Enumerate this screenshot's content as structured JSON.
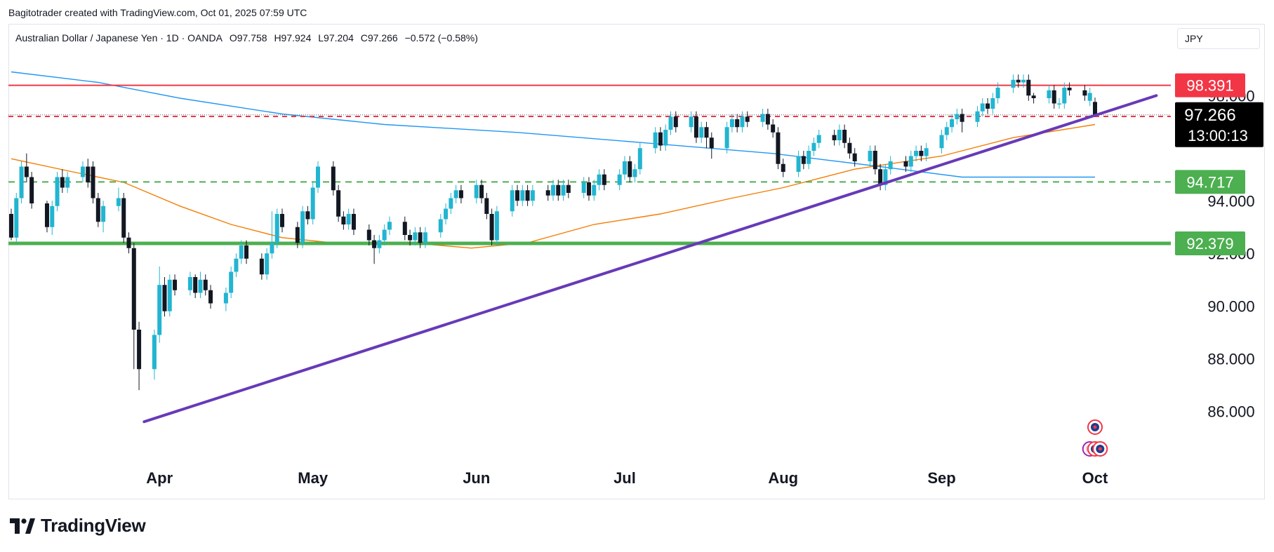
{
  "credit": "Bagitotrader created with TradingView.com, Oct 01, 2025 07:59 UTC",
  "legend": {
    "symbol": "Australian Dollar / Japanese Yen · 1D · OANDA",
    "open": "O97.758",
    "high": "H97.924",
    "low": "L97.204",
    "close": "C97.266",
    "change": "−0.572 (−0.58%)"
  },
  "currency": "JPY",
  "brand": "TradingView",
  "countdown": "13:00:13",
  "colors": {
    "up": "#22b5d1",
    "down": "#131722",
    "red_line": "#f23645",
    "green_line": "#4caf50",
    "trend_line": "#673ab7",
    "ma_fast": "#f57c00",
    "ma_slow": "#2196f3"
  },
  "chart_data": {
    "type": "candlestick",
    "ylim": [
      84.3,
      99.5
    ],
    "yticks": [
      {
        "value": 98.0,
        "label": "98.000"
      },
      {
        "value": 94.0,
        "label": "94.000"
      },
      {
        "value": 92.0,
        "label": "92.000"
      },
      {
        "value": 90.0,
        "label": "90.000"
      },
      {
        "value": 88.0,
        "label": "88.000"
      },
      {
        "value": 86.0,
        "label": "86.000"
      }
    ],
    "xlabels": [
      "Apr",
      "May",
      "Jun",
      "Jul",
      "Aug",
      "Sep",
      "Oct"
    ],
    "price_levels": [
      {
        "value": 98.391,
        "label": "98.391",
        "style": "solid-red"
      },
      {
        "value": 97.207,
        "label": "97.207",
        "style": "dashed-red"
      },
      {
        "value": 94.717,
        "label": "94.717",
        "style": "dashed-green"
      },
      {
        "value": 92.379,
        "label": "92.379",
        "style": "solid-green"
      }
    ],
    "last_price": {
      "value": 97.266,
      "label": "97.266"
    },
    "trendline": {
      "from": {
        "date": "2025-03-29",
        "price": 85.6
      },
      "to": {
        "date": "2025-10-13",
        "price": 98.0
      }
    },
    "candles": [
      [
        "2025-03-03",
        93.5,
        92.6,
        93.7,
        92.5
      ],
      [
        "2025-03-04",
        92.6,
        94.1,
        94.3,
        92.4
      ],
      [
        "2025-03-05",
        94.1,
        95.3,
        95.5,
        93.9
      ],
      [
        "2025-03-06",
        95.3,
        94.9,
        95.8,
        94.7
      ],
      [
        "2025-03-07",
        94.9,
        93.9,
        95.1,
        93.7
      ],
      [
        "2025-03-10",
        93.9,
        93.0,
        94.0,
        92.8
      ],
      [
        "2025-03-11",
        93.0,
        93.8,
        94.0,
        92.7
      ],
      [
        "2025-03-12",
        93.8,
        94.9,
        95.1,
        93.6
      ],
      [
        "2025-03-13",
        94.9,
        94.5,
        95.2,
        94.3
      ],
      [
        "2025-03-14",
        94.5,
        94.9,
        95.1,
        94.3
      ],
      [
        "2025-03-17",
        94.9,
        95.3,
        95.5,
        94.7
      ],
      [
        "2025-03-18",
        95.3,
        94.7,
        95.6,
        94.5
      ],
      [
        "2025-03-19",
        95.3,
        94.1,
        95.5,
        93.9
      ],
      [
        "2025-03-20",
        94.1,
        93.2,
        94.3,
        93.0
      ],
      [
        "2025-03-21",
        93.2,
        93.8,
        94.0,
        92.8
      ],
      [
        "2025-03-24",
        93.8,
        94.1,
        94.5,
        93.6
      ],
      [
        "2025-03-25",
        94.1,
        92.6,
        94.3,
        92.4
      ],
      [
        "2025-03-26",
        92.6,
        92.2,
        92.8,
        92.0
      ],
      [
        "2025-03-27",
        92.2,
        89.1,
        92.4,
        87.6
      ],
      [
        "2025-03-28",
        89.1,
        87.6,
        89.4,
        86.8
      ],
      [
        "2025-03-31",
        87.6,
        88.9,
        89.1,
        87.2
      ],
      [
        "2025-04-01",
        88.9,
        90.8,
        91.5,
        88.6
      ],
      [
        "2025-04-02",
        90.8,
        89.8,
        91.1,
        89.6
      ],
      [
        "2025-04-03",
        89.8,
        91.0,
        91.2,
        89.6
      ],
      [
        "2025-04-04",
        91.0,
        90.6,
        91.2,
        90.4
      ],
      [
        "2025-04-07",
        90.6,
        91.1,
        91.3,
        90.4
      ],
      [
        "2025-04-08",
        91.1,
        90.5,
        91.2,
        90.3
      ],
      [
        "2025-04-09",
        90.5,
        91.0,
        91.3,
        90.3
      ],
      [
        "2025-04-10",
        91.0,
        90.6,
        91.2,
        90.4
      ],
      [
        "2025-04-11",
        90.6,
        90.1,
        90.8,
        89.9
      ],
      [
        "2025-04-14",
        90.1,
        90.5,
        90.7,
        89.8
      ],
      [
        "2025-04-15",
        90.5,
        91.3,
        91.5,
        90.3
      ],
      [
        "2025-04-16",
        91.3,
        91.8,
        92.0,
        91.1
      ],
      [
        "2025-04-17",
        91.8,
        92.3,
        92.5,
        91.6
      ],
      [
        "2025-04-18",
        92.3,
        91.8,
        92.5,
        91.6
      ],
      [
        "2025-04-21",
        91.8,
        91.2,
        92.0,
        91.0
      ],
      [
        "2025-04-22",
        91.2,
        92.0,
        92.2,
        91.0
      ],
      [
        "2025-04-23",
        92.0,
        92.4,
        93.6,
        91.8
      ],
      [
        "2025-04-24",
        92.4,
        93.5,
        93.7,
        92.2
      ],
      [
        "2025-04-25",
        93.5,
        93.0,
        93.7,
        92.8
      ],
      [
        "2025-04-28",
        93.0,
        92.4,
        93.2,
        92.2
      ],
      [
        "2025-04-29",
        92.4,
        93.6,
        93.8,
        92.2
      ],
      [
        "2025-04-30",
        93.6,
        93.3,
        93.8,
        93.1
      ],
      [
        "2025-05-01",
        93.3,
        94.5,
        94.7,
        93.1
      ],
      [
        "2025-05-02",
        94.5,
        95.3,
        95.5,
        94.3
      ],
      [
        "2025-05-05",
        95.3,
        94.4,
        95.5,
        94.2
      ],
      [
        "2025-05-06",
        94.4,
        93.4,
        94.6,
        93.2
      ],
      [
        "2025-05-07",
        93.4,
        93.1,
        93.6,
        92.9
      ],
      [
        "2025-05-08",
        93.1,
        93.5,
        93.7,
        92.9
      ],
      [
        "2025-05-09",
        93.5,
        92.9,
        93.7,
        92.7
      ],
      [
        "2025-05-12",
        92.9,
        92.5,
        93.1,
        92.3
      ],
      [
        "2025-05-13",
        92.5,
        92.2,
        92.7,
        91.6
      ],
      [
        "2025-05-14",
        92.2,
        92.5,
        92.7,
        92.0
      ],
      [
        "2025-05-15",
        92.5,
        92.9,
        93.1,
        92.3
      ],
      [
        "2025-05-16",
        92.9,
        93.2,
        93.4,
        92.7
      ],
      [
        "2025-05-19",
        93.2,
        92.7,
        93.4,
        92.5
      ],
      [
        "2025-05-20",
        92.7,
        92.5,
        92.9,
        92.3
      ],
      [
        "2025-05-21",
        92.5,
        92.8,
        93.0,
        92.3
      ],
      [
        "2025-05-22",
        92.8,
        92.4,
        93.0,
        92.2
      ],
      [
        "2025-05-23",
        92.4,
        92.8,
        93.0,
        92.2
      ],
      [
        "2025-05-26",
        92.8,
        93.3,
        93.5,
        92.6
      ],
      [
        "2025-05-27",
        93.3,
        93.7,
        93.9,
        93.1
      ],
      [
        "2025-05-28",
        93.7,
        94.1,
        94.3,
        93.5
      ],
      [
        "2025-05-29",
        94.1,
        94.4,
        94.6,
        93.9
      ],
      [
        "2025-05-30",
        94.4,
        94.1,
        94.6,
        93.9
      ],
      [
        "2025-06-02",
        94.1,
        94.6,
        94.8,
        93.9
      ],
      [
        "2025-06-03",
        94.6,
        94.1,
        94.8,
        93.9
      ],
      [
        "2025-06-04",
        94.1,
        93.5,
        94.3,
        93.3
      ],
      [
        "2025-06-05",
        93.5,
        92.5,
        93.7,
        92.3
      ],
      [
        "2025-06-06",
        92.5,
        93.6,
        93.8,
        92.3
      ],
      [
        "2025-06-09",
        93.6,
        94.4,
        94.6,
        93.4
      ],
      [
        "2025-06-10",
        94.4,
        94.0,
        94.6,
        93.8
      ],
      [
        "2025-06-11",
        94.0,
        94.4,
        94.6,
        93.8
      ],
      [
        "2025-06-12",
        94.4,
        94.0,
        94.6,
        93.8
      ],
      [
        "2025-06-13",
        94.0,
        94.4,
        94.6,
        93.8
      ],
      [
        "2025-06-16",
        94.4,
        94.2,
        94.6,
        94.0
      ],
      [
        "2025-06-17",
        94.2,
        94.6,
        94.8,
        94.0
      ],
      [
        "2025-06-18",
        94.6,
        94.2,
        94.8,
        94.0
      ],
      [
        "2025-06-19",
        94.2,
        94.6,
        94.8,
        94.0
      ],
      [
        "2025-06-20",
        94.6,
        94.3,
        94.8,
        94.1
      ],
      [
        "2025-06-23",
        94.3,
        94.7,
        94.9,
        94.1
      ],
      [
        "2025-06-24",
        94.7,
        94.2,
        94.9,
        94.0
      ],
      [
        "2025-06-25",
        94.2,
        94.6,
        94.8,
        94.0
      ],
      [
        "2025-06-26",
        94.6,
        95.0,
        95.2,
        94.4
      ],
      [
        "2025-06-27",
        95.0,
        94.6,
        95.2,
        94.4
      ],
      [
        "2025-06-30",
        94.6,
        95.0,
        95.2,
        94.4
      ],
      [
        "2025-07-01",
        95.0,
        95.5,
        95.7,
        94.8
      ],
      [
        "2025-07-02",
        95.5,
        94.9,
        95.7,
        94.7
      ],
      [
        "2025-07-03",
        94.9,
        95.2,
        95.4,
        94.7
      ],
      [
        "2025-07-04",
        95.2,
        96.0,
        96.2,
        95.0
      ],
      [
        "2025-07-07",
        96.0,
        96.6,
        96.8,
        95.8
      ],
      [
        "2025-07-08",
        96.6,
        96.1,
        96.8,
        95.9
      ],
      [
        "2025-07-09",
        96.1,
        96.7,
        96.9,
        95.9
      ],
      [
        "2025-07-10",
        96.7,
        97.2,
        97.4,
        96.5
      ],
      [
        "2025-07-11",
        97.2,
        96.8,
        97.4,
        96.6
      ],
      [
        "2025-07-14",
        96.8,
        97.2,
        97.4,
        96.6
      ],
      [
        "2025-07-15",
        97.2,
        96.4,
        97.4,
        96.2
      ],
      [
        "2025-07-16",
        96.4,
        96.8,
        97.0,
        96.2
      ],
      [
        "2025-07-17",
        96.8,
        96.4,
        97.0,
        96.0
      ],
      [
        "2025-07-18",
        96.4,
        96.0,
        96.6,
        95.6
      ],
      [
        "2025-07-21",
        96.0,
        96.8,
        97.0,
        95.8
      ],
      [
        "2025-07-22",
        96.8,
        97.1,
        97.3,
        96.6
      ],
      [
        "2025-07-23",
        97.1,
        96.8,
        97.3,
        96.6
      ],
      [
        "2025-07-24",
        96.8,
        97.2,
        97.4,
        96.6
      ],
      [
        "2025-07-25",
        97.2,
        97.0,
        97.4,
        96.8
      ],
      [
        "2025-07-28",
        97.0,
        97.3,
        97.5,
        96.8
      ],
      [
        "2025-07-29",
        97.3,
        96.9,
        97.5,
        96.7
      ],
      [
        "2025-07-30",
        96.9,
        96.6,
        97.1,
        96.4
      ],
      [
        "2025-07-31",
        96.6,
        95.4,
        96.8,
        95.2
      ],
      [
        "2025-08-01",
        95.4,
        95.1,
        95.6,
        94.9
      ],
      [
        "2025-08-04",
        95.1,
        95.7,
        95.9,
        94.9
      ],
      [
        "2025-08-05",
        95.7,
        95.4,
        95.9,
        95.2
      ],
      [
        "2025-08-06",
        95.4,
        95.9,
        96.1,
        95.2
      ],
      [
        "2025-08-07",
        95.9,
        96.2,
        96.4,
        95.7
      ],
      [
        "2025-08-08",
        96.2,
        96.5,
        96.7,
        96.0
      ],
      [
        "2025-08-11",
        96.5,
        96.3,
        96.7,
        96.1
      ],
      [
        "2025-08-12",
        96.3,
        96.7,
        96.9,
        96.1
      ],
      [
        "2025-08-13",
        96.7,
        96.2,
        96.9,
        96.0
      ],
      [
        "2025-08-14",
        96.2,
        95.8,
        96.4,
        95.6
      ],
      [
        "2025-08-15",
        95.8,
        95.5,
        96.0,
        95.3
      ],
      [
        "2025-08-18",
        95.5,
        95.9,
        96.1,
        95.3
      ],
      [
        "2025-08-19",
        95.9,
        95.2,
        96.1,
        95.0
      ],
      [
        "2025-08-20",
        95.2,
        94.6,
        95.4,
        94.4
      ],
      [
        "2025-08-21",
        94.6,
        95.2,
        95.4,
        94.4
      ],
      [
        "2025-08-22",
        95.2,
        95.5,
        95.7,
        95.0
      ],
      [
        "2025-08-25",
        95.5,
        95.3,
        95.7,
        95.1
      ],
      [
        "2025-08-26",
        95.3,
        95.7,
        95.9,
        95.1
      ],
      [
        "2025-08-27",
        95.7,
        95.9,
        96.1,
        95.5
      ],
      [
        "2025-08-28",
        95.9,
        95.7,
        96.1,
        95.5
      ],
      [
        "2025-08-29",
        95.7,
        96.0,
        96.2,
        95.5
      ],
      [
        "2025-09-01",
        96.0,
        96.5,
        96.7,
        95.8
      ],
      [
        "2025-09-02",
        96.5,
        96.8,
        97.0,
        96.3
      ],
      [
        "2025-09-03",
        96.8,
        97.1,
        97.3,
        96.6
      ],
      [
        "2025-09-04",
        97.1,
        97.3,
        97.5,
        96.9
      ],
      [
        "2025-09-05",
        97.3,
        97.0,
        97.5,
        96.6
      ],
      [
        "2025-09-08",
        97.0,
        97.4,
        97.6,
        96.8
      ],
      [
        "2025-09-09",
        97.4,
        97.7,
        97.9,
        97.2
      ],
      [
        "2025-09-10",
        97.7,
        97.5,
        97.9,
        97.3
      ],
      [
        "2025-09-11",
        97.5,
        97.9,
        98.1,
        97.3
      ],
      [
        "2025-09-12",
        97.9,
        98.3,
        98.5,
        97.7
      ],
      [
        "2025-09-15",
        98.3,
        98.6,
        98.8,
        98.1
      ],
      [
        "2025-09-16",
        98.6,
        98.5,
        98.8,
        98.3
      ],
      [
        "2025-09-17",
        98.5,
        98.6,
        98.8,
        98.3
      ],
      [
        "2025-09-18",
        98.6,
        98.0,
        98.8,
        97.8
      ],
      [
        "2025-09-19",
        98.0,
        97.9,
        98.1,
        97.7
      ],
      [
        "2025-09-22",
        97.9,
        98.2,
        98.4,
        97.7
      ],
      [
        "2025-09-23",
        98.2,
        97.7,
        98.4,
        97.5
      ],
      [
        "2025-09-24",
        97.7,
        97.7,
        97.9,
        97.5
      ],
      [
        "2025-09-25",
        97.7,
        98.3,
        98.5,
        97.5
      ],
      [
        "2025-09-26",
        98.3,
        98.2,
        98.5,
        98.0
      ],
      [
        "2025-09-29",
        98.2,
        98.0,
        98.4,
        97.8
      ],
      [
        "2025-09-30",
        97.8,
        98.1,
        98.3,
        97.6
      ],
      [
        "2025-10-01",
        97.758,
        97.266,
        97.924,
        97.204
      ]
    ],
    "ma_fast": [
      [
        "2025-03-03",
        95.6
      ],
      [
        "2025-03-15",
        95.1
      ],
      [
        "2025-03-25",
        94.7
      ],
      [
        "2025-04-05",
        93.8
      ],
      [
        "2025-04-15",
        93.1
      ],
      [
        "2025-04-25",
        92.6
      ],
      [
        "2025-05-05",
        92.4
      ],
      [
        "2025-05-20",
        92.4
      ],
      [
        "2025-06-01",
        92.2
      ],
      [
        "2025-06-12",
        92.4
      ],
      [
        "2025-06-25",
        93.1
      ],
      [
        "2025-07-08",
        93.5
      ],
      [
        "2025-07-22",
        94.1
      ],
      [
        "2025-08-01",
        94.5
      ],
      [
        "2025-08-15",
        95.2
      ],
      [
        "2025-09-01",
        95.7
      ],
      [
        "2025-09-15",
        96.4
      ],
      [
        "2025-10-01",
        96.9
      ]
    ],
    "ma_slow": [
      [
        "2025-03-03",
        98.9
      ],
      [
        "2025-03-20",
        98.5
      ],
      [
        "2025-04-05",
        97.9
      ],
      [
        "2025-04-25",
        97.3
      ],
      [
        "2025-05-15",
        96.9
      ],
      [
        "2025-06-10",
        96.6
      ],
      [
        "2025-07-05",
        96.2
      ],
      [
        "2025-07-30",
        95.8
      ],
      [
        "2025-08-20",
        95.3
      ],
      [
        "2025-09-05",
        94.9
      ],
      [
        "2025-09-20",
        94.9
      ],
      [
        "2025-10-01",
        94.9
      ]
    ],
    "event_markers": [
      {
        "date": "2025-10-01",
        "row": 0
      },
      {
        "date": "2025-09-30",
        "row": 1
      },
      {
        "date": "2025-10-01",
        "row": 1
      },
      {
        "date": "2025-10-02",
        "row": 1
      }
    ]
  }
}
